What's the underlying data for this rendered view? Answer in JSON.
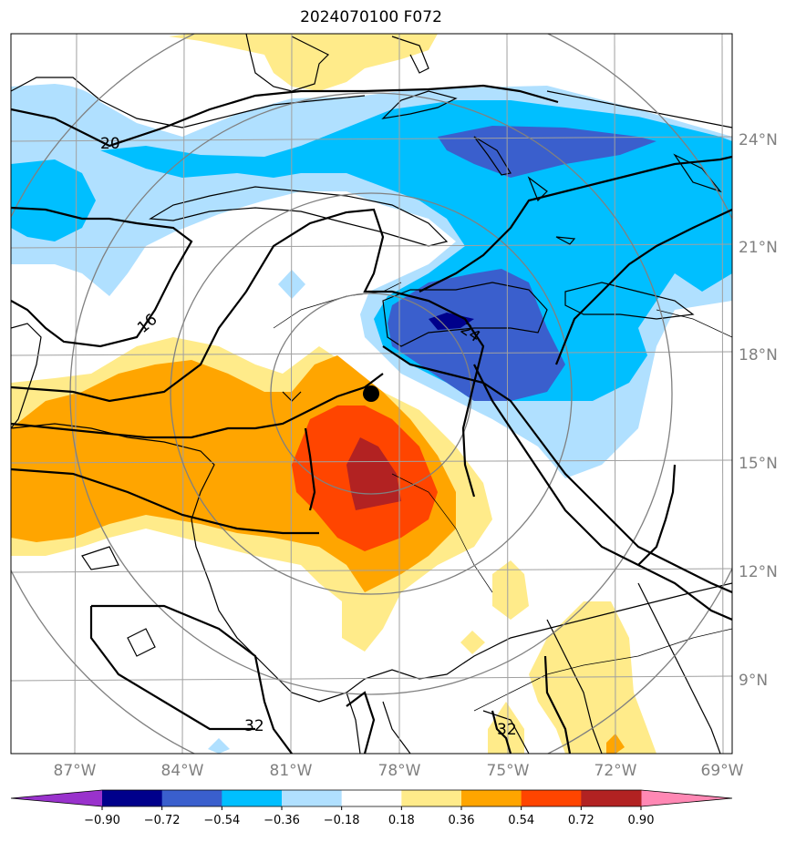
{
  "title": "2024070100 F072",
  "lat_labels": [
    "24°N",
    "21°N",
    "18°N",
    "15°N",
    "12°N",
    "9°N"
  ],
  "lon_labels": [
    "87°W",
    "84°W",
    "81°W",
    "78°W",
    "75°W",
    "72°W",
    "69°W"
  ],
  "colorbar": {
    "ticks": [
      "−0.90",
      "−0.72",
      "−0.54",
      "−0.36",
      "−0.18",
      "0.18",
      "0.36",
      "0.54",
      "0.72",
      "0.90"
    ],
    "colors": [
      "#9932cc",
      "#00008b",
      "#3a5fcd",
      "#00bfff",
      "#b0e0ff",
      "#ffffff",
      "#ffeb8a",
      "#ffa500",
      "#ff4500",
      "#b22222",
      "#ff88b4"
    ]
  },
  "contour_labels": [
    "20",
    "16",
    "24",
    "32",
    "32"
  ],
  "colors": {
    "coast": "#000000",
    "grid": "#a0a0a0",
    "rings": "#808080",
    "marker": "#000000"
  }
}
